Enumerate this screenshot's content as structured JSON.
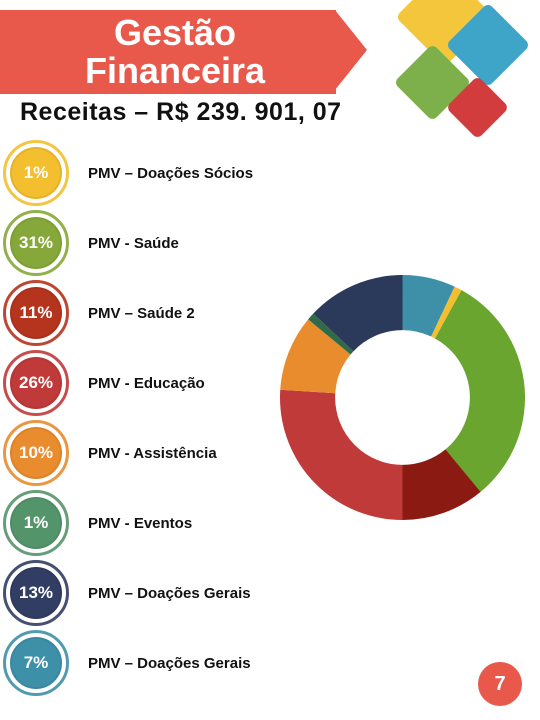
{
  "title": "Gestão Financeira",
  "subtitle": "Receitas – R$ 239. 901, 07",
  "page_number": "7",
  "colors": {
    "title_bg": "#e8594c",
    "text": "#111111",
    "pagenum_bg": "#e8594c"
  },
  "deco_diamonds": [
    {
      "color": "#f3c63c"
    },
    {
      "color": "#3ea5c9"
    },
    {
      "color": "#7db04b"
    },
    {
      "color": "#d33c3c"
    }
  ],
  "items": [
    {
      "pct": "1%",
      "label": "PMV – Doações Sócios",
      "color": "#f3bf2f"
    },
    {
      "pct": "31%",
      "label": "PMV - Saúde",
      "color": "#86a83a"
    },
    {
      "pct": "11%",
      "label": "PMV – Saúde 2",
      "color": "#b5341e"
    },
    {
      "pct": "26%",
      "label": "PMV - Educação",
      "color": "#c03a3a"
    },
    {
      "pct": "10%",
      "label": "PMV - Assistência",
      "color": "#e98c2e"
    },
    {
      "pct": "1%",
      "label": "PMV - Eventos",
      "color": "#54946a"
    },
    {
      "pct": "13%",
      "label": "PMV – Doações Gerais",
      "color": "#313d63"
    },
    {
      "pct": "7%",
      "label": "PMV – Doações Gerais",
      "color": "#3e90a9"
    }
  ],
  "donut": {
    "type": "pie",
    "inner_radius_ratio": 0.55,
    "background": "#ffffff",
    "slices": [
      {
        "value": 7,
        "color": "#3e90a9"
      },
      {
        "value": 1,
        "color": "#f3bf2f"
      },
      {
        "value": 31,
        "color": "#6aa62f"
      },
      {
        "value": 11,
        "color": "#8a1a12"
      },
      {
        "value": 26,
        "color": "#c03a3a"
      },
      {
        "value": 10,
        "color": "#e98c2e"
      },
      {
        "value": 1,
        "color": "#2f6b48"
      },
      {
        "value": 13,
        "color": "#2b3a5a"
      }
    ]
  }
}
